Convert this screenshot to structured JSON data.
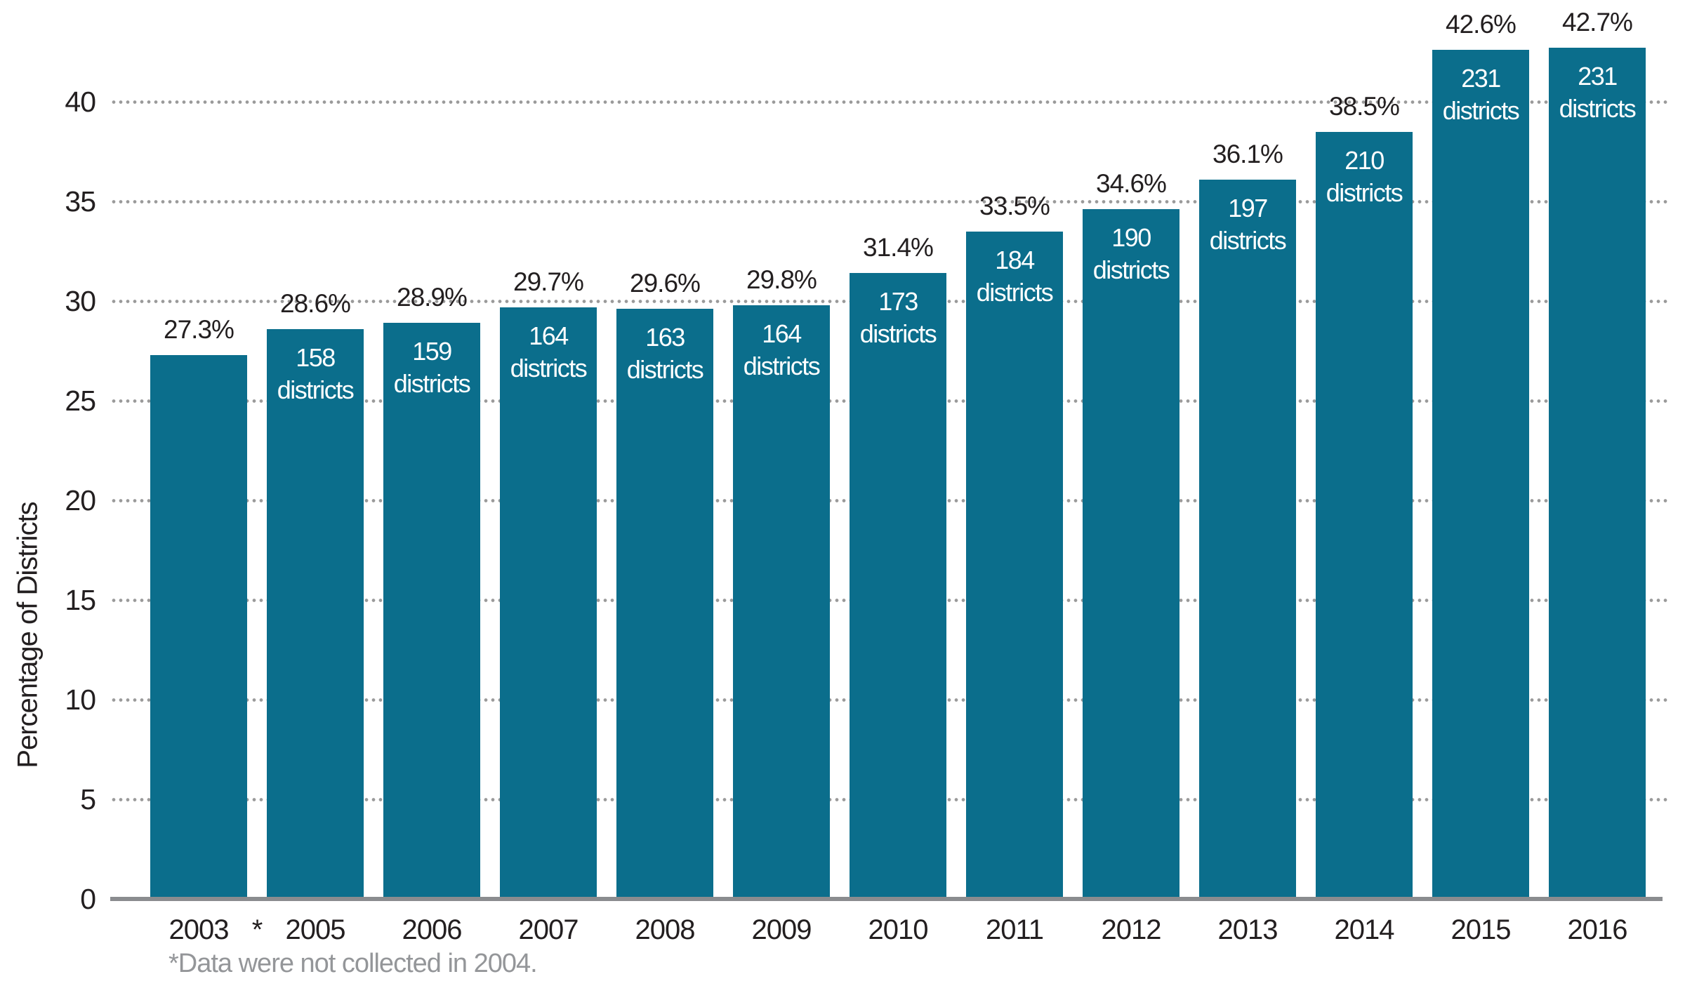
{
  "chart_data": {
    "type": "bar",
    "title": "",
    "xlabel": "",
    "ylabel": "Percentage of Districts",
    "ylim": [
      0,
      44
    ],
    "y_ticks": [
      0,
      5,
      10,
      15,
      20,
      25,
      30,
      35,
      40
    ],
    "grid": "horizontal dotted lines at every 5 units, drawn behind bars",
    "legend_position": "none",
    "categories": [
      "2003",
      "2005",
      "2006",
      "2007",
      "2008",
      "2009",
      "2010",
      "2011",
      "2012",
      "2013",
      "2014",
      "2015",
      "2016"
    ],
    "values": [
      27.3,
      28.6,
      28.9,
      29.7,
      29.6,
      29.8,
      31.4,
      33.5,
      34.6,
      36.1,
      38.5,
      42.6,
      42.7
    ],
    "percent_labels": [
      "27.3%",
      "28.6%",
      "28.9%",
      "29.7%",
      "29.6%",
      "29.8%",
      "31.4%",
      "33.5%",
      "34.6%",
      "36.1%",
      "38.5%",
      "42.6%",
      "42.7%"
    ],
    "district_counts": [
      null,
      "158",
      "159",
      "164",
      "163",
      "164",
      "173",
      "184",
      "190",
      "197",
      "210",
      "231",
      "231"
    ],
    "district_word": "districts",
    "missing_year_marker": "*",
    "footnote": "*Data were not collected in 2004.",
    "colors": {
      "bar": "#0b6e8c",
      "grid_dot": "#9a9a9a",
      "axis_line": "#8a8c8f",
      "label_text": "#231f20",
      "inner_label_text": "#ffffff",
      "footnote_text": "#949699",
      "background": "#ffffff"
    }
  }
}
